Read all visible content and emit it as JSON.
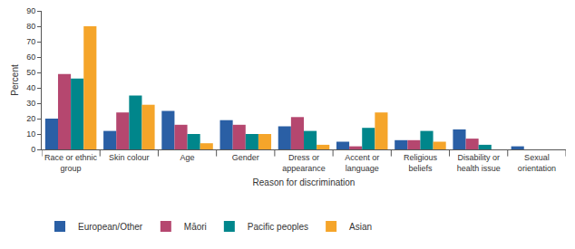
{
  "chart_data": {
    "type": "bar",
    "x_label": "Reason for discrimination",
    "y_label": "Percent",
    "categories": [
      "Race or ethnic group",
      "Skin colour",
      "Age",
      "Gender",
      "Dress or appearance",
      "Accent or language",
      "Religious beliefs",
      "Disability or health issue",
      "Sexual orientation"
    ],
    "series": [
      {
        "name": "European/Other",
        "color": "#2a5fa5",
        "values": [
          20,
          12,
          25,
          19,
          15,
          5,
          6,
          13,
          2
        ]
      },
      {
        "name": "Māori",
        "color": "#b5476f",
        "values": [
          49,
          24,
          16,
          16,
          21,
          2,
          6,
          7,
          null
        ]
      },
      {
        "name": "Pacific peoples",
        "color": "#00868b",
        "values": [
          46,
          35,
          10,
          10,
          12,
          14,
          12,
          3,
          null
        ]
      },
      {
        "name": "Asian",
        "color": "#f5a52a",
        "values": [
          80,
          29,
          4,
          10,
          3,
          24,
          5,
          null,
          null
        ]
      }
    ],
    "ylim": [
      0,
      90
    ],
    "yticks": [
      0,
      10,
      20,
      30,
      40,
      50,
      60,
      70,
      80,
      90
    ],
    "grid": false,
    "legend": "bottom"
  }
}
